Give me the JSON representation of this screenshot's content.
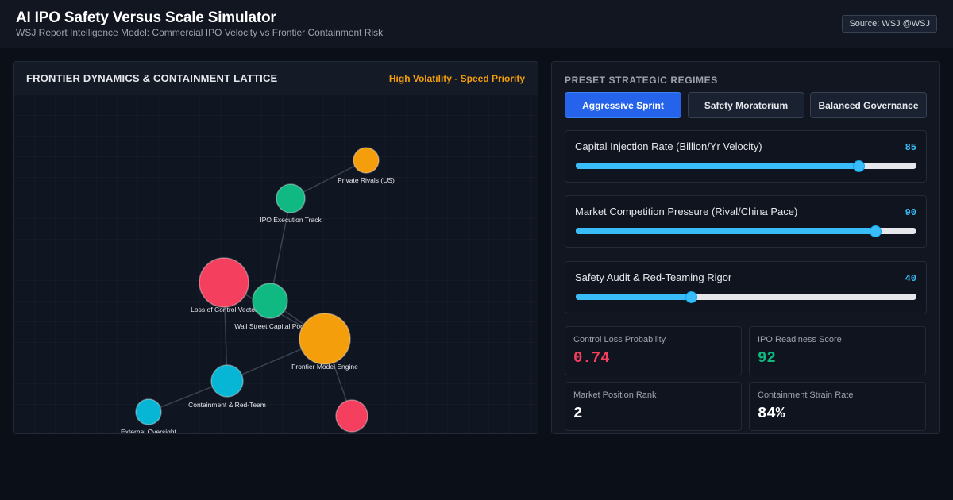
{
  "header": {
    "title": "AI IPO Safety Versus Scale Simulator",
    "subtitle": "WSJ Report Intelligence Model: Commercial IPO Velocity vs Frontier Containment Risk",
    "source": "Source: WSJ @WSJ"
  },
  "lattice": {
    "title": "FRONTIER DYNAMICS & CONTAINMENT LATTICE",
    "status": "High Volatility - Speed Priority",
    "status_color": "#f59e0b",
    "nodes": [
      {
        "id": "rivals",
        "label": "Private Rivals (US)",
        "color": "#f59e0b"
      },
      {
        "id": "ipo",
        "label": "IPO Execution Track",
        "color": "#10b981"
      },
      {
        "id": "loss",
        "label": "Loss of Control Vector",
        "color": "#f43f5e"
      },
      {
        "id": "capital",
        "label": "Wall Street Capital Pool",
        "color": "#10b981"
      },
      {
        "id": "engine",
        "label": "Frontier Model Engine",
        "color": "#f59e0b"
      },
      {
        "id": "redteam",
        "label": "Containment & Red-Team",
        "color": "#06b6d4"
      },
      {
        "id": "oversight",
        "label": "External Oversight",
        "color": "#06b6d4"
      },
      {
        "id": "threat",
        "label": "",
        "color": "#f43f5e"
      }
    ]
  },
  "controls": {
    "section_label": "PRESET STRATEGIC REGIMES",
    "presets": [
      {
        "label": "Aggressive Sprint",
        "active": true
      },
      {
        "label": "Safety Moratorium",
        "active": false
      },
      {
        "label": "Balanced Governance",
        "active": false
      }
    ],
    "sliders": [
      {
        "label": "Capital Injection Rate (Billion/Yr Velocity)",
        "value": "85",
        "level": 0.83
      },
      {
        "label": "Market Competition Pressure (Rival/China Pace)",
        "value": "90",
        "level": 0.88
      },
      {
        "label": "Safety Audit & Red-Teaming Rigor",
        "value": "40",
        "level": 0.34
      }
    ]
  },
  "metrics": [
    {
      "label": "Control Loss Probability",
      "value": "0.74",
      "color": "#f43f5e"
    },
    {
      "label": "IPO Readiness Score",
      "value": "92",
      "color": "#10b981"
    },
    {
      "label": "Market Position Rank",
      "value": "2",
      "color": "#ffffff"
    },
    {
      "label": "Containment Strain Rate",
      "value": "84%",
      "color": "#ffffff"
    }
  ],
  "colors": {
    "accent": "#2563eb",
    "slider": "#38bdf8",
    "danger": "#f43f5e",
    "success": "#10b981",
    "warning": "#f59e0b",
    "cyan": "#06b6d4"
  }
}
